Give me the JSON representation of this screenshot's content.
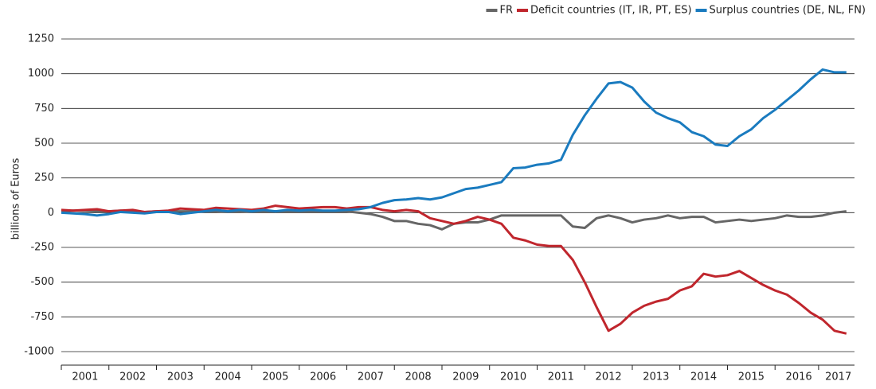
{
  "chart_data": {
    "type": "line",
    "y_label": "billions of Euros",
    "legend_position": "top-right",
    "grid": true,
    "x": [
      2001,
      2001.25,
      2001.5,
      2001.75,
      2002,
      2002.25,
      2002.5,
      2002.75,
      2003,
      2003.25,
      2003.5,
      2003.75,
      2004,
      2004.25,
      2004.5,
      2004.75,
      2005,
      2005.25,
      2005.5,
      2005.75,
      2006,
      2006.25,
      2006.5,
      2006.75,
      2007,
      2007.25,
      2007.5,
      2007.75,
      2008,
      2008.25,
      2008.5,
      2008.75,
      2009,
      2009.25,
      2009.5,
      2009.75,
      2010,
      2010.25,
      2010.5,
      2010.75,
      2011,
      2011.25,
      2011.5,
      2011.75,
      2012,
      2012.25,
      2012.5,
      2012.75,
      2013,
      2013.25,
      2013.5,
      2013.75,
      2014,
      2014.25,
      2014.5,
      2014.75,
      2015,
      2015.25,
      2015.5,
      2015.75,
      2016,
      2016.25,
      2016.5,
      2016.75,
      2017,
      2017.25,
      2017.5
    ],
    "series": [
      {
        "name": "FR",
        "color": "#666666",
        "values": [
          10,
          15,
          15,
          10,
          10,
          15,
          10,
          5,
          10,
          10,
          10,
          10,
          10,
          10,
          5,
          5,
          10,
          10,
          10,
          10,
          10,
          10,
          10,
          10,
          10,
          0,
          -10,
          -30,
          -60,
          -60,
          -80,
          -90,
          -120,
          -80,
          -70,
          -70,
          -50,
          -20,
          -20,
          -20,
          -20,
          -20,
          -20,
          -100,
          -110,
          -40,
          -20,
          -40,
          -70,
          -50,
          -40,
          -20,
          -40,
          -30,
          -30,
          -70,
          -60,
          -50,
          -60,
          -50,
          -40,
          -20,
          -30,
          -30,
          -20,
          0,
          10
        ]
      },
      {
        "name": "Deficit countries (IT, IR, PT, ES)",
        "color": "#c0262d",
        "values": [
          20,
          15,
          20,
          25,
          10,
          15,
          20,
          5,
          10,
          15,
          30,
          25,
          20,
          35,
          30,
          25,
          20,
          30,
          50,
          40,
          30,
          35,
          40,
          40,
          30,
          40,
          40,
          20,
          10,
          20,
          10,
          -40,
          -60,
          -80,
          -60,
          -30,
          -50,
          -80,
          -180,
          -200,
          -230,
          -240,
          -240,
          -340,
          -500,
          -680,
          -850,
          -800,
          -720,
          -670,
          -640,
          -620,
          -560,
          -530,
          -440,
          -460,
          -450,
          -420,
          -470,
          -520,
          -560,
          -590,
          -650,
          -720,
          -770,
          -850,
          -870
        ]
      },
      {
        "name": "Surplus countries (DE, NL, FN)",
        "color": "#1a7bbf",
        "values": [
          0,
          -5,
          -10,
          -20,
          -10,
          5,
          0,
          -5,
          5,
          5,
          -10,
          0,
          10,
          20,
          10,
          20,
          10,
          20,
          10,
          20,
          15,
          20,
          15,
          15,
          20,
          25,
          40,
          70,
          90,
          95,
          105,
          95,
          110,
          140,
          170,
          180,
          200,
          220,
          320,
          325,
          345,
          355,
          380,
          560,
          700,
          820,
          930,
          940,
          900,
          800,
          720,
          680,
          650,
          580,
          550,
          490,
          480,
          550,
          600,
          680,
          740,
          810,
          880,
          960,
          1030,
          1010,
          1010
        ]
      }
    ],
    "xlim": [
      2001,
      2017.67
    ],
    "xticks": [
      {
        "value": 2001.5,
        "label": "2001"
      },
      {
        "value": 2002.5,
        "label": "2002"
      },
      {
        "value": 2003.5,
        "label": "2003"
      },
      {
        "value": 2004.5,
        "label": "2004"
      },
      {
        "value": 2005.5,
        "label": "2005"
      },
      {
        "value": 2006.5,
        "label": "2006"
      },
      {
        "value": 2007.5,
        "label": "2007"
      },
      {
        "value": 2008.5,
        "label": "2008"
      },
      {
        "value": 2009.5,
        "label": "2009"
      },
      {
        "value": 2010.5,
        "label": "2010"
      },
      {
        "value": 2011.5,
        "label": "2011"
      },
      {
        "value": 2012.5,
        "label": "2012"
      },
      {
        "value": 2013.5,
        "label": "2013"
      },
      {
        "value": 2014.5,
        "label": "2014"
      },
      {
        "value": 2015.5,
        "label": "2015"
      },
      {
        "value": 2016.5,
        "label": "2016"
      },
      {
        "value": 2017.33,
        "label": "2017"
      }
    ],
    "ylim": [
      -1000,
      1250
    ],
    "yticks": [
      -1000,
      -750,
      -500,
      -250,
      0,
      250,
      500,
      750,
      1000,
      1250
    ]
  }
}
